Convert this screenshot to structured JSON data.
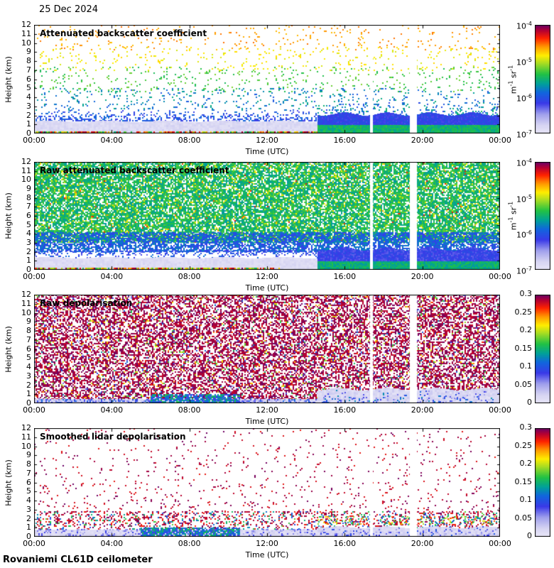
{
  "chart_data": {
    "type": "heatmap",
    "date_label": "25 Dec 2024",
    "station_label": "Rovaniemi CL61D ceilometer",
    "x_axis": {
      "label": "Time (UTC)",
      "ticks": [
        "00:00",
        "04:00",
        "08:00",
        "12:00",
        "16:00",
        "20:00",
        "00:00"
      ],
      "range_hours": [
        0,
        24
      ]
    },
    "y_axis": {
      "label": "Height (km)",
      "ticks": [
        "12",
        "11",
        "10",
        "9",
        "8",
        "7",
        "6",
        "5",
        "4",
        "3",
        "2",
        "1",
        "0"
      ],
      "range_km": [
        0,
        12
      ]
    },
    "colormap": {
      "description": "light lavender at minimum through blue, green, yellow, orange, red to dark purple at maximum",
      "stops": [
        {
          "v": 0.0,
          "color": "#eae8f8"
        },
        {
          "v": 0.08,
          "color": "#d6d4f2"
        },
        {
          "v": 0.18,
          "color": "#a0a0ec"
        },
        {
          "v": 0.28,
          "color": "#3a3ae8"
        },
        {
          "v": 0.38,
          "color": "#1166dd"
        },
        {
          "v": 0.46,
          "color": "#00a09a"
        },
        {
          "v": 0.55,
          "color": "#22c244"
        },
        {
          "v": 0.65,
          "color": "#aadd22"
        },
        {
          "v": 0.72,
          "color": "#ffee00"
        },
        {
          "v": 0.8,
          "color": "#ff9900"
        },
        {
          "v": 0.88,
          "color": "#ff2200"
        },
        {
          "v": 0.95,
          "color": "#b40033"
        },
        {
          "v": 1.0,
          "color": "#6a0066"
        }
      ]
    },
    "data_gaps_utc": [
      {
        "t0": 17.31,
        "t1": 17.44
      },
      {
        "t0": 19.36,
        "t1": 19.72
      }
    ],
    "panels": [
      {
        "title": "Attenuated backscatter coefficient",
        "colorbar": {
          "scale": "log",
          "ticks": [
            "10^{-4}",
            "10^{-5}",
            "10^{-6}",
            "10^{-7}"
          ],
          "unit": "m^{-1} sr^{-1}",
          "range": [
            "1e-7",
            "1e-4"
          ]
        },
        "seed": 11,
        "regions": [
          {
            "name": "noise-high-orange",
            "t": [
              0,
              24
            ],
            "h": [
              9.2,
              12
            ],
            "cov": 0.05,
            "v": [
              0.76,
              0.83
            ],
            "cell": 2
          },
          {
            "name": "noise-yellow",
            "t": [
              0,
              24
            ],
            "h": [
              7,
              9.6
            ],
            "cov": 0.06,
            "v": [
              0.68,
              0.75
            ],
            "cell": 2
          },
          {
            "name": "noise-green",
            "t": [
              0,
              24
            ],
            "h": [
              4.6,
              7.4
            ],
            "cov": 0.07,
            "v": [
              0.52,
              0.62
            ],
            "cell": 2
          },
          {
            "name": "noise-blue",
            "t": [
              0,
              24
            ],
            "h": [
              2.6,
              5.0
            ],
            "cov": 0.09,
            "v": [
              0.34,
              0.5
            ],
            "cell": 2
          },
          {
            "name": "aerosol-blue-band",
            "t": [
              0,
              14.6
            ],
            "h": [
              1.35,
              2.75
            ],
            "cov": 0.55,
            "v": [
              0.26,
              0.4
            ],
            "cell": 2,
            "fade": "up"
          },
          {
            "name": "boundary-layer-lavender",
            "t": [
              0,
              14.6
            ],
            "h": [
              0,
              1.35
            ],
            "cov": 1,
            "v": [
              0.02,
              0.09
            ],
            "cell": 3,
            "wave": {
              "amp": 0.08,
              "period": 3
            }
          },
          {
            "name": "surface-return-strip",
            "t": [
              0,
              14.6
            ],
            "h": [
              0,
              0.22
            ],
            "cov": 0.75,
            "v": [
              0.45,
              1.0
            ],
            "cell": 2
          },
          {
            "name": "above-cloud-speckle",
            "t": [
              14.6,
              24
            ],
            "h": [
              2.0,
              3.6
            ],
            "cov": 0.3,
            "v": [
              0.3,
              0.52
            ],
            "cell": 2,
            "fade": "up"
          },
          {
            "name": "cloud-layer",
            "t": [
              14.6,
              24
            ],
            "h": [
              0.9,
              2.15
            ],
            "cov": 1,
            "v": [
              0.26,
              0.34
            ],
            "cell": 2,
            "wave": {
              "amp": 0.18,
              "period": 2.2
            }
          },
          {
            "name": "below-cloud-green",
            "t": [
              14.6,
              24
            ],
            "h": [
              0,
              0.95
            ],
            "cov": 1,
            "v": [
              0.46,
              0.56
            ],
            "cell": 2
          }
        ]
      },
      {
        "title": "Raw attenuated backscatter coefficient",
        "colorbar": {
          "scale": "log",
          "ticks": [
            "10^{-4}",
            "10^{-5}",
            "10^{-6}",
            "10^{-7}"
          ],
          "unit": "m^{-1} sr^{-1}",
          "range": [
            "1e-7",
            "1e-4"
          ]
        },
        "seed": 22,
        "regions": [
          {
            "name": "raw-noise-green",
            "t": [
              0,
              24
            ],
            "h": [
              3.0,
              12
            ],
            "cov": 0.78,
            "v": [
              0.44,
              0.6
            ],
            "cell": 2
          },
          {
            "name": "raw-noise-yellow-specks",
            "t": [
              0,
              24
            ],
            "h": [
              3.0,
              12
            ],
            "cov": 0.07,
            "v": [
              0.66,
              0.74
            ],
            "cell": 2
          },
          {
            "name": "raw-noise-red-specks",
            "t": [
              0,
              24
            ],
            "h": [
              3.0,
              12
            ],
            "cov": 0.01,
            "v": [
              0.78,
              0.92
            ],
            "cell": 2
          },
          {
            "name": "raw-noise-blue",
            "t": [
              0,
              24
            ],
            "h": [
              2.0,
              4.2
            ],
            "cov": 0.7,
            "v": [
              0.28,
              0.44
            ],
            "cell": 2
          },
          {
            "name": "raw-noise-blue-fade",
            "t": [
              0,
              24
            ],
            "h": [
              1.1,
              2.2
            ],
            "cov": 0.45,
            "v": [
              0.24,
              0.4
            ],
            "cell": 2,
            "fade": "down"
          },
          {
            "name": "boundary-layer-lavender",
            "t": [
              0,
              14.6
            ],
            "h": [
              0,
              1.35
            ],
            "cov": 1,
            "v": [
              0.02,
              0.08
            ],
            "cell": 3,
            "wave": {
              "amp": 0.08,
              "period": 3
            }
          },
          {
            "name": "surface-return-strip",
            "t": [
              0,
              12.6
            ],
            "h": [
              0,
              0.2
            ],
            "cov": 0.8,
            "v": [
              0.5,
              1.0
            ],
            "cell": 2
          },
          {
            "name": "cloud-layer",
            "t": [
              14.6,
              24
            ],
            "h": [
              0.9,
              2.3
            ],
            "cov": 1,
            "v": [
              0.24,
              0.33
            ],
            "cell": 2,
            "wave": {
              "amp": 0.2,
              "period": 2.2
            }
          },
          {
            "name": "below-cloud-green",
            "t": [
              14.6,
              24
            ],
            "h": [
              0,
              0.95
            ],
            "cov": 1,
            "v": [
              0.44,
              0.55
            ],
            "cell": 2
          }
        ]
      },
      {
        "title": "Raw depolarisation",
        "colorbar": {
          "scale": "linear",
          "ticks": [
            "0.3",
            "0.25",
            "0.2",
            "0.15",
            "0.1",
            "0.05",
            "0"
          ],
          "unit": null,
          "range": [
            0,
            0.3
          ]
        },
        "seed": 33,
        "regions": [
          {
            "name": "depol-noise-purple",
            "t": [
              0,
              24
            ],
            "h": [
              0.45,
              12
            ],
            "cov": 0.5,
            "v": [
              0.93,
              1.0
            ],
            "cell": 2
          },
          {
            "name": "depol-noise-warm-specks",
            "t": [
              0,
              24
            ],
            "h": [
              0.45,
              12
            ],
            "cov": 0.06,
            "v": [
              0.5,
              0.9
            ],
            "cell": 2
          },
          {
            "name": "depol-noise-cool-specks",
            "t": [
              0,
              24
            ],
            "h": [
              0.45,
              12
            ],
            "cov": 0.03,
            "v": [
              0.1,
              0.45
            ],
            "cell": 2
          },
          {
            "name": "low-depol-surface",
            "t": [
              0,
              14.6
            ],
            "h": [
              0,
              0.5
            ],
            "cov": 1,
            "v": [
              0.03,
              0.12
            ],
            "cell": 3
          },
          {
            "name": "surface-blue-speckle",
            "t": [
              0,
              14.6
            ],
            "h": [
              0,
              0.45
            ],
            "cov": 0.35,
            "v": [
              0.2,
              0.4
            ],
            "cell": 2
          },
          {
            "name": "morning-blob",
            "t": [
              6,
              10.6
            ],
            "h": [
              0.1,
              1.05
            ],
            "cov": 0.75,
            "v": [
              0.25,
              0.55
            ],
            "cell": 2
          },
          {
            "name": "low-depol-under-cloud",
            "t": [
              14.6,
              24
            ],
            "h": [
              0,
              1.55
            ],
            "cov": 1,
            "v": [
              0.02,
              0.1
            ],
            "cell": 3,
            "wave": {
              "amp": 0.15,
              "period": 2.5
            }
          },
          {
            "name": "under-cloud-blue-speckle",
            "t": [
              14.6,
              24
            ],
            "h": [
              0,
              1.5
            ],
            "cov": 0.3,
            "v": [
              0.15,
              0.45
            ],
            "cell": 2,
            "fade": "up",
            "wave": {
              "amp": 0.15,
              "period": 2.5
            }
          }
        ]
      },
      {
        "title": "Smoothed lidar depolarisation",
        "colorbar": {
          "scale": "linear",
          "ticks": [
            "0.3",
            "0.25",
            "0.2",
            "0.15",
            "0.1",
            "0.05",
            "0"
          ],
          "unit": null,
          "range": [
            0,
            0.3
          ]
        },
        "seed": 44,
        "regions": [
          {
            "name": "sparse-purple-high",
            "t": [
              0,
              24
            ],
            "h": [
              2.6,
              12
            ],
            "cov": 0.035,
            "v": [
              0.9,
              1.0
            ],
            "cell": 2
          },
          {
            "name": "sparse-purple-mid",
            "t": [
              0,
              24
            ],
            "h": [
              2.6,
              6
            ],
            "cov": 0.02,
            "v": [
              0.9,
              1.0
            ],
            "cell": 2
          },
          {
            "name": "purple-band",
            "t": [
              0,
              24
            ],
            "h": [
              0.75,
              2.8
            ],
            "cov": 0.22,
            "v": [
              0.88,
              1.0
            ],
            "cell": 2
          },
          {
            "name": "band-mixed-specks",
            "t": [
              0,
              24
            ],
            "h": [
              0.75,
              2.8
            ],
            "cov": 0.08,
            "v": [
              0.3,
              0.6
            ],
            "cell": 2
          },
          {
            "name": "low-depol-surface",
            "t": [
              0,
              14.6
            ],
            "h": [
              0,
              0.75
            ],
            "cov": 1,
            "v": [
              0.02,
              0.08
            ],
            "cell": 3
          },
          {
            "name": "surface-blue-speckle",
            "t": [
              0,
              14.6
            ],
            "h": [
              0.2,
              0.9
            ],
            "cov": 0.25,
            "v": [
              0.1,
              0.3
            ],
            "cell": 2
          },
          {
            "name": "morning-blob",
            "t": [
              5.5,
              10.6
            ],
            "h": [
              0.1,
              1.05
            ],
            "cov": 0.8,
            "v": [
              0.25,
              0.55
            ],
            "cell": 2
          },
          {
            "name": "low-depol-under-cloud",
            "t": [
              14.6,
              24
            ],
            "h": [
              0,
              1.05
            ],
            "cov": 1,
            "v": [
              0.03,
              0.1
            ],
            "cell": 3,
            "wave": {
              "amp": 0.1,
              "period": 2.5
            }
          },
          {
            "name": "under-cloud-blue-patches",
            "t": [
              14.6,
              24
            ],
            "h": [
              0,
              1.3
            ],
            "cov": 0.35,
            "v": [
              0.12,
              0.35
            ],
            "cell": 2,
            "fade": "up"
          },
          {
            "name": "cloud-top-speck-line",
            "t": [
              14.6,
              24
            ],
            "h": [
              1.5,
              2.3
            ],
            "cov": 0.25,
            "v": [
              0.3,
              0.95
            ],
            "cell": 2
          }
        ]
      }
    ]
  }
}
